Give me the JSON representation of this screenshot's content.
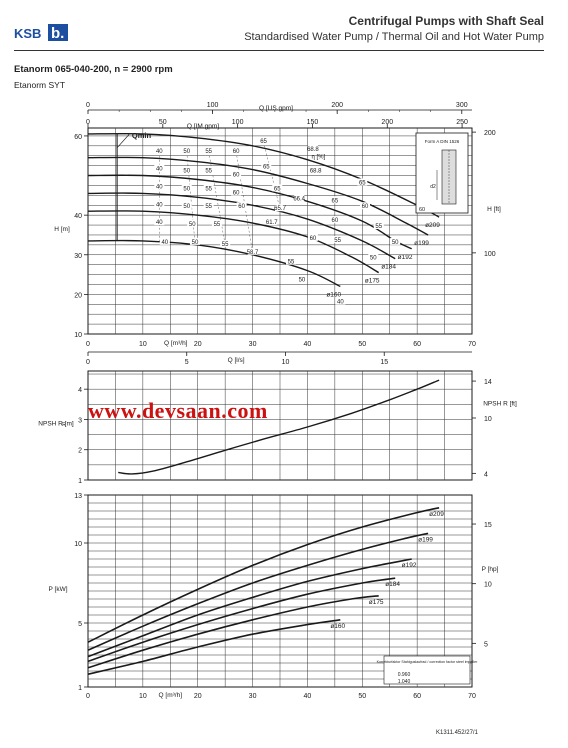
{
  "header": {
    "brand": "KSB",
    "title": "Centrifugal Pumps with Shaft Seal",
    "subtitle": "Standardised Water Pump / Thermal Oil and Hot Water Pump",
    "model": "Etanorm 065-040-200, n = 2900 rpm",
    "series": "Etanorm SYT",
    "drawing_code": "K1311.452/27/1",
    "watermark": "www.devsaan.com"
  },
  "colors": {
    "ink": "#1a1a1a",
    "grid": "#333333",
    "watermark": "#cc1111",
    "brand": "#1c4fa0"
  },
  "chart_data": [
    {
      "type": "line",
      "name": "H-Q",
      "ylabel": "H [m]",
      "y2label": "H [ft]",
      "ylim": [
        10,
        62
      ],
      "yticks": [
        10,
        20,
        30,
        40,
        60
      ],
      "y2ticks": [
        100,
        200
      ],
      "xlim": [
        0,
        70
      ],
      "top_axes": [
        {
          "label": "Q [US.gpm]",
          "ticks": [
            0,
            100,
            200,
            300
          ]
        },
        {
          "label": "Q [IM.gpm]",
          "ticks": [
            0,
            50,
            100,
            150,
            200,
            250
          ]
        }
      ],
      "bottom_axes": [
        {
          "label": "Q [m³/h]",
          "ticks": [
            0,
            10,
            20,
            30,
            40,
            50,
            60,
            70
          ]
        },
        {
          "label": "Q [l/s]",
          "ticks": [
            0,
            5,
            10,
            15
          ]
        }
      ],
      "qmin_label": "Qmin",
      "eta_label": "η [%]",
      "series": [
        {
          "name": "ø209",
          "x": [
            0,
            10,
            20,
            30,
            40,
            50,
            60,
            64
          ],
          "y": [
            60.5,
            60.5,
            59.5,
            57.5,
            54,
            49,
            42.5,
            39.5
          ]
        },
        {
          "name": "ø199",
          "x": [
            0,
            10,
            20,
            30,
            40,
            50,
            58,
            62
          ],
          "y": [
            54.5,
            54.5,
            53.5,
            51.5,
            48,
            43.5,
            38,
            35
          ]
        },
        {
          "name": "ø192",
          "x": [
            0,
            10,
            20,
            30,
            40,
            50,
            56,
            59
          ],
          "y": [
            50,
            50,
            49,
            47,
            43.5,
            38.5,
            33.5,
            31.5
          ]
        },
        {
          "name": "ø184",
          "x": [
            0,
            10,
            20,
            30,
            40,
            50,
            56
          ],
          "y": [
            45.5,
            45.5,
            44.5,
            42.5,
            39,
            33.5,
            29
          ]
        },
        {
          "name": "ø175",
          "x": [
            0,
            10,
            20,
            30,
            40,
            48,
            53
          ],
          "y": [
            41,
            41,
            40,
            38,
            34.5,
            29.5,
            25.5
          ]
        },
        {
          "name": "ø160",
          "x": [
            0,
            10,
            20,
            30,
            40,
            46
          ],
          "y": [
            33.5,
            33.5,
            32.5,
            30,
            26,
            22
          ]
        }
      ],
      "efficiency_labels": [
        {
          "text": "40",
          "x": 13,
          "y": 56
        },
        {
          "text": "50",
          "x": 18,
          "y": 56
        },
        {
          "text": "55",
          "x": 22,
          "y": 56
        },
        {
          "text": "60",
          "x": 27,
          "y": 56
        },
        {
          "text": "65",
          "x": 32,
          "y": 58.5
        },
        {
          "text": "40",
          "x": 13,
          "y": 51.5
        },
        {
          "text": "50",
          "x": 18,
          "y": 51
        },
        {
          "text": "55",
          "x": 22,
          "y": 51
        },
        {
          "text": "60",
          "x": 27,
          "y": 50
        },
        {
          "text": "65",
          "x": 32.5,
          "y": 52
        },
        {
          "text": "40",
          "x": 13,
          "y": 47
        },
        {
          "text": "50",
          "x": 18,
          "y": 46.5
        },
        {
          "text": "55",
          "x": 22,
          "y": 46.5
        },
        {
          "text": "60",
          "x": 27,
          "y": 45.5
        },
        {
          "text": "65",
          "x": 34.5,
          "y": 46.5
        },
        {
          "text": "66.4",
          "x": 38.5,
          "y": 44
        },
        {
          "text": "40",
          "x": 13,
          "y": 42.5
        },
        {
          "text": "50",
          "x": 18,
          "y": 42
        },
        {
          "text": "55",
          "x": 22,
          "y": 42
        },
        {
          "text": "60",
          "x": 28,
          "y": 42
        },
        {
          "text": "65.7",
          "x": 35,
          "y": 41.5
        },
        {
          "text": "40",
          "x": 13,
          "y": 38
        },
        {
          "text": "50",
          "x": 19,
          "y": 37.5
        },
        {
          "text": "55",
          "x": 23.5,
          "y": 37.5
        },
        {
          "text": "61.7",
          "x": 33.5,
          "y": 38
        },
        {
          "text": "40",
          "x": 14,
          "y": 33
        },
        {
          "text": "50",
          "x": 19.5,
          "y": 33
        },
        {
          "text": "55",
          "x": 25,
          "y": 32.5
        },
        {
          "text": "58.7",
          "x": 30,
          "y": 30.5
        },
        {
          "text": "68.8",
          "x": 41,
          "y": 56.5
        },
        {
          "text": "68.8",
          "x": 41.5,
          "y": 51
        },
        {
          "text": "65",
          "x": 50,
          "y": 48
        },
        {
          "text": "60",
          "x": 50.5,
          "y": 42
        },
        {
          "text": "55",
          "x": 53,
          "y": 37
        },
        {
          "text": "50",
          "x": 56,
          "y": 33
        },
        {
          "text": "65",
          "x": 45,
          "y": 43.5
        },
        {
          "text": "60",
          "x": 45,
          "y": 38.5
        },
        {
          "text": "55",
          "x": 45.5,
          "y": 33.5
        },
        {
          "text": "50",
          "x": 52,
          "y": 29
        },
        {
          "text": "60",
          "x": 41,
          "y": 34
        },
        {
          "text": "55",
          "x": 37,
          "y": 28
        },
        {
          "text": "50",
          "x": 39,
          "y": 23.5
        },
        {
          "text": "40",
          "x": 46,
          "y": 18
        },
        {
          "text": "60",
          "x": 61,
          "y": 42.5
        }
      ],
      "inset": {
        "label": "Form A DIN 1526",
        "dimension": "d2",
        "value": "60"
      }
    },
    {
      "type": "line",
      "name": "NPSHR-Q",
      "ylabel": "NPSH R [m]",
      "y2label": "NPSH R [ft]",
      "ylim": [
        1,
        4.6
      ],
      "yticks": [
        1,
        2,
        3,
        4
      ],
      "y2ticks": [
        4,
        10,
        14
      ],
      "xlim": [
        0,
        70
      ],
      "series": [
        {
          "name": "NPSHR",
          "x": [
            5.5,
            8,
            12,
            18,
            25,
            32,
            40,
            48,
            55,
            60,
            64
          ],
          "y": [
            1.25,
            1.2,
            1.3,
            1.6,
            1.98,
            2.35,
            2.75,
            3.2,
            3.65,
            4.0,
            4.3
          ]
        }
      ]
    },
    {
      "type": "line",
      "name": "P-Q",
      "ylabel": "P [kW]",
      "y2label": "P [hp]",
      "ylim": [
        1,
        13
      ],
      "yticks": [
        1,
        5,
        10,
        13
      ],
      "y2ticks": [
        5,
        10,
        15
      ],
      "xlim": [
        0,
        70
      ],
      "xlabel": "Q [m³/h]",
      "xticks": [
        0,
        10,
        20,
        30,
        40,
        50,
        60,
        70
      ],
      "correction_note": {
        "title": "Korrekturfaktor Stahlguslaufrad / correction factor steel impeller",
        "values": [
          "0.960",
          "1.040"
        ]
      },
      "series": [
        {
          "name": "ø209",
          "x": [
            0,
            10,
            20,
            30,
            40,
            50,
            60,
            64
          ],
          "y": [
            3.8,
            5.5,
            7.1,
            8.6,
            9.9,
            11,
            11.9,
            12.2
          ]
        },
        {
          "name": "ø199",
          "x": [
            0,
            10,
            20,
            30,
            40,
            50,
            58,
            62
          ],
          "y": [
            3.3,
            4.8,
            6.2,
            7.5,
            8.6,
            9.6,
            10.3,
            10.6
          ]
        },
        {
          "name": "ø192",
          "x": [
            0,
            10,
            20,
            30,
            40,
            50,
            56,
            59
          ],
          "y": [
            2.9,
            4.2,
            5.5,
            6.6,
            7.6,
            8.4,
            8.8,
            9.0
          ]
        },
        {
          "name": "ø184",
          "x": [
            0,
            10,
            20,
            30,
            40,
            50,
            56
          ],
          "y": [
            2.6,
            3.8,
            4.9,
            5.9,
            6.8,
            7.5,
            7.8
          ]
        },
        {
          "name": "ø175",
          "x": [
            0,
            10,
            20,
            30,
            40,
            48,
            53
          ],
          "y": [
            2.2,
            3.3,
            4.3,
            5.2,
            6.0,
            6.5,
            6.7
          ]
        },
        {
          "name": "ø160",
          "x": [
            0,
            10,
            20,
            30,
            40,
            46
          ],
          "y": [
            1.8,
            2.6,
            3.5,
            4.3,
            4.9,
            5.2
          ]
        }
      ]
    }
  ]
}
